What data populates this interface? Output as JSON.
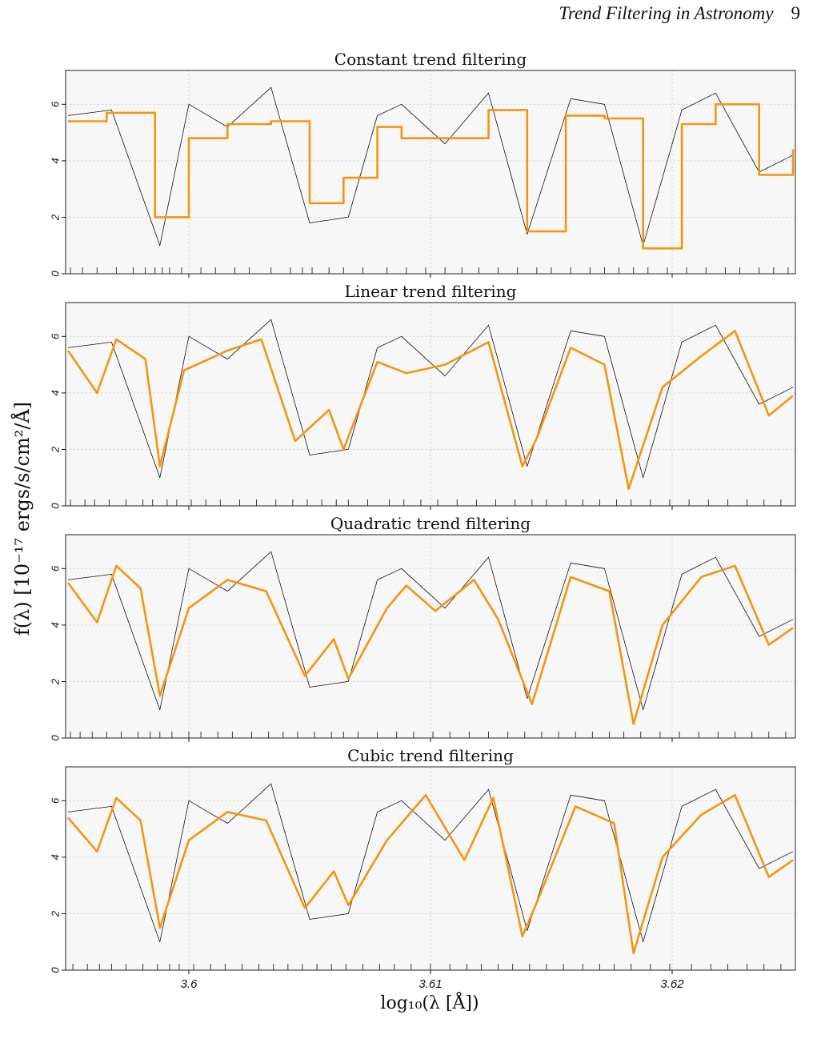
{
  "header": {
    "running_title": "Trend Filtering in Astronomy",
    "page_number": "9"
  },
  "figure": {
    "ylabel": "f(λ) [10⁻¹⁷ ergs/s/cm²/Å]",
    "xlabel": "log₁₀(λ  [Å])"
  },
  "colors": {
    "fit": "#f39512",
    "data": "#111111",
    "panel_bg": "#f7f7f7",
    "grid": "#c8c8c8"
  },
  "chart_data": [
    {
      "type": "line",
      "title": "Constant trend filtering",
      "xlim": [
        3.5949,
        3.6251
      ],
      "ylim": [
        0,
        7.2
      ],
      "yticks": [
        "0",
        "2",
        "4",
        "6"
      ],
      "xticks": [
        "3.6",
        "3.61",
        "3.62"
      ],
      "grid": true,
      "series": [
        {
          "kind": "observed",
          "x": [
            3.595,
            3.5968,
            3.5988,
            3.6,
            3.6016,
            3.6034,
            3.605,
            3.6066,
            3.6078,
            3.6088,
            3.6106,
            3.6124,
            3.614,
            3.6158,
            3.6172,
            3.6188,
            3.6204,
            3.6218,
            3.6236,
            3.625
          ],
          "y": [
            5.6,
            5.8,
            1.0,
            6.0,
            5.2,
            6.6,
            1.8,
            2.0,
            5.6,
            6.0,
            4.6,
            6.4,
            1.4,
            6.2,
            6.0,
            1.0,
            5.8,
            6.4,
            3.6,
            4.2
          ]
        },
        {
          "kind": "fit",
          "x": [
            3.595,
            3.5966,
            3.5986,
            3.6,
            3.6016,
            3.6034,
            3.605,
            3.6064,
            3.6078,
            3.6088,
            3.6106,
            3.6124,
            3.614,
            3.6156,
            3.6172,
            3.6188,
            3.6204,
            3.6218,
            3.6236,
            3.625
          ],
          "y": [
            5.4,
            5.7,
            2.0,
            4.8,
            5.3,
            5.4,
            2.5,
            3.4,
            5.2,
            4.8,
            4.8,
            5.8,
            1.5,
            5.6,
            5.5,
            0.9,
            5.3,
            6.0,
            3.5,
            4.4
          ]
        }
      ],
      "knots": [
        3.5951,
        3.5956,
        3.5962,
        3.597,
        3.5977,
        3.5982,
        3.5986,
        3.5989,
        3.5992,
        3.5997,
        3.6005,
        3.6011,
        3.6019,
        3.6025,
        3.6034,
        3.6042,
        3.6047,
        3.6051,
        3.6058,
        3.6064,
        3.6072,
        3.6082,
        3.609,
        3.6098,
        3.6106,
        3.6113,
        3.612,
        3.6128,
        3.6136,
        3.6144,
        3.615,
        3.6158,
        3.6166,
        3.6172,
        3.6178,
        3.6184,
        3.619,
        3.6198,
        3.6206,
        3.6214,
        3.6222,
        3.6228,
        3.6236,
        3.6242,
        3.6248
      ]
    },
    {
      "type": "line",
      "title": "Linear trend filtering",
      "xlim": [
        3.5949,
        3.6251
      ],
      "ylim": [
        0,
        7.2
      ],
      "yticks": [
        "0",
        "2",
        "4",
        "6"
      ],
      "xticks": [
        "3.6",
        "3.61",
        "3.62"
      ],
      "grid": true,
      "series": [
        {
          "kind": "observed",
          "x": [
            3.595,
            3.5968,
            3.5988,
            3.6,
            3.6016,
            3.6034,
            3.605,
            3.6066,
            3.6078,
            3.6088,
            3.6106,
            3.6124,
            3.614,
            3.6158,
            3.6172,
            3.6188,
            3.6204,
            3.6218,
            3.6236,
            3.625
          ],
          "y": [
            5.6,
            5.8,
            1.0,
            6.0,
            5.2,
            6.6,
            1.8,
            2.0,
            5.6,
            6.0,
            4.6,
            6.4,
            1.4,
            6.2,
            6.0,
            1.0,
            5.8,
            6.4,
            3.6,
            4.2
          ]
        },
        {
          "kind": "fit",
          "x": [
            3.595,
            3.5962,
            3.597,
            3.5982,
            3.5988,
            3.5998,
            3.6016,
            3.603,
            3.6044,
            3.6058,
            3.6064,
            3.6078,
            3.609,
            3.6106,
            3.6124,
            3.6138,
            3.6144,
            3.6158,
            3.6172,
            3.6182,
            3.6196,
            3.6212,
            3.6226,
            3.624,
            3.625
          ],
          "y": [
            5.5,
            4.0,
            5.9,
            5.2,
            1.4,
            4.8,
            5.5,
            5.9,
            2.3,
            3.4,
            2.0,
            5.1,
            4.7,
            5.0,
            5.8,
            1.4,
            2.4,
            5.6,
            5.0,
            0.6,
            4.2,
            5.3,
            6.2,
            3.2,
            3.9
          ]
        }
      ],
      "knots": [
        3.5951,
        3.5957,
        3.5961,
        3.5967,
        3.5974,
        3.5981,
        3.5985,
        3.5991,
        3.5995,
        3.6001,
        3.6007,
        3.6013,
        3.6021,
        3.6028,
        3.6036,
        3.6043,
        3.6049,
        3.6055,
        3.6061,
        3.6066,
        3.6074,
        3.6083,
        3.6089,
        3.6096,
        3.6103,
        3.6111,
        3.6119,
        3.6127,
        3.6135,
        3.6142,
        3.6148,
        3.6156,
        3.6163,
        3.617,
        3.6177,
        3.6183,
        3.6191,
        3.6199,
        3.6207,
        3.6215,
        3.6223,
        3.6231,
        3.6238,
        3.6245
      ]
    },
    {
      "type": "line",
      "title": "Quadratic trend filtering",
      "xlim": [
        3.5949,
        3.6251
      ],
      "ylim": [
        0,
        7.2
      ],
      "yticks": [
        "0",
        "2",
        "4",
        "6"
      ],
      "xticks": [
        "3.6",
        "3.61",
        "3.62"
      ],
      "grid": true,
      "series": [
        {
          "kind": "observed",
          "x": [
            3.595,
            3.5968,
            3.5988,
            3.6,
            3.6016,
            3.6034,
            3.605,
            3.6066,
            3.6078,
            3.6088,
            3.6106,
            3.6124,
            3.614,
            3.6158,
            3.6172,
            3.6188,
            3.6204,
            3.6218,
            3.6236,
            3.625
          ],
          "y": [
            5.6,
            5.8,
            1.0,
            6.0,
            5.2,
            6.6,
            1.8,
            2.0,
            5.6,
            6.0,
            4.6,
            6.4,
            1.4,
            6.2,
            6.0,
            1.0,
            5.8,
            6.4,
            3.6,
            4.2
          ]
        },
        {
          "kind": "fit",
          "x": [
            3.595,
            3.5962,
            3.597,
            3.598,
            3.5988,
            3.6,
            3.6016,
            3.6032,
            3.6048,
            3.606,
            3.6066,
            3.6082,
            3.609,
            3.6102,
            3.6118,
            3.6128,
            3.6142,
            3.6158,
            3.6174,
            3.6184,
            3.6196,
            3.6212,
            3.6226,
            3.624,
            3.625
          ],
          "y": [
            5.5,
            4.1,
            6.1,
            5.3,
            1.5,
            4.6,
            5.6,
            5.2,
            2.2,
            3.5,
            2.1,
            4.6,
            5.4,
            4.5,
            5.6,
            4.2,
            1.2,
            5.7,
            5.2,
            0.5,
            4.0,
            5.7,
            6.1,
            3.3,
            3.9
          ]
        }
      ],
      "knots": [
        3.5951,
        3.5955,
        3.596,
        3.5966,
        3.5972,
        3.5979,
        3.5984,
        3.5988,
        3.5993,
        3.6,
        3.6005,
        3.6012,
        3.6018,
        3.6026,
        3.6033,
        3.6039,
        3.6045,
        3.6052,
        3.6059,
        3.6064,
        3.607,
        3.6078,
        3.6086,
        3.6093,
        3.6101,
        3.6108,
        3.6116,
        3.6124,
        3.6132,
        3.6139,
        3.6146,
        3.6153,
        3.616,
        3.6167,
        3.6174,
        3.618,
        3.6187,
        3.6195,
        3.6203,
        3.6211,
        3.6219,
        3.6226,
        3.6233,
        3.624,
        3.6247
      ]
    },
    {
      "type": "line",
      "title": "Cubic trend filtering",
      "xlim": [
        3.5949,
        3.6251
      ],
      "ylim": [
        0,
        7.2
      ],
      "yticks": [
        "0",
        "2",
        "4",
        "6"
      ],
      "xticks": [
        "3.6",
        "3.61",
        "3.62"
      ],
      "grid": true,
      "series": [
        {
          "kind": "observed",
          "x": [
            3.595,
            3.5968,
            3.5988,
            3.6,
            3.6016,
            3.6034,
            3.605,
            3.6066,
            3.6078,
            3.6088,
            3.6106,
            3.6124,
            3.614,
            3.6158,
            3.6172,
            3.6188,
            3.6204,
            3.6218,
            3.6236,
            3.625
          ],
          "y": [
            5.6,
            5.8,
            1.0,
            6.0,
            5.2,
            6.6,
            1.8,
            2.0,
            5.6,
            6.0,
            4.6,
            6.4,
            1.4,
            6.2,
            6.0,
            1.0,
            5.8,
            6.4,
            3.6,
            4.2
          ]
        },
        {
          "kind": "fit",
          "x": [
            3.595,
            3.5962,
            3.597,
            3.598,
            3.5988,
            3.6,
            3.6016,
            3.6032,
            3.6048,
            3.606,
            3.6066,
            3.6082,
            3.6098,
            3.6114,
            3.6126,
            3.6138,
            3.6144,
            3.616,
            3.6176,
            3.6184,
            3.6196,
            3.6212,
            3.6226,
            3.624,
            3.625
          ],
          "y": [
            5.4,
            4.2,
            6.1,
            5.3,
            1.5,
            4.6,
            5.6,
            5.3,
            2.2,
            3.5,
            2.3,
            4.6,
            6.2,
            3.9,
            6.1,
            1.2,
            2.4,
            5.8,
            5.2,
            0.6,
            4.0,
            5.5,
            6.2,
            3.3,
            3.9
          ]
        }
      ],
      "knots": [
        3.5952,
        3.5958,
        3.5963,
        3.5968,
        3.5974,
        3.5981,
        3.5987,
        3.5992,
        3.5996,
        3.6002,
        3.6009,
        3.6015,
        3.6022,
        3.6029,
        3.6035,
        3.6041,
        3.6047,
        3.6053,
        3.6059,
        3.6065,
        3.6072,
        3.6079,
        3.6085,
        3.6092,
        3.61,
        3.6108,
        3.6115,
        3.6121,
        3.6128,
        3.6134,
        3.6141,
        3.6148,
        3.6155,
        3.6163,
        3.617,
        3.6176,
        3.6183,
        3.6191,
        3.6199,
        3.6208,
        3.6216,
        3.6223,
        3.6231,
        3.6238,
        3.6245
      ]
    }
  ]
}
